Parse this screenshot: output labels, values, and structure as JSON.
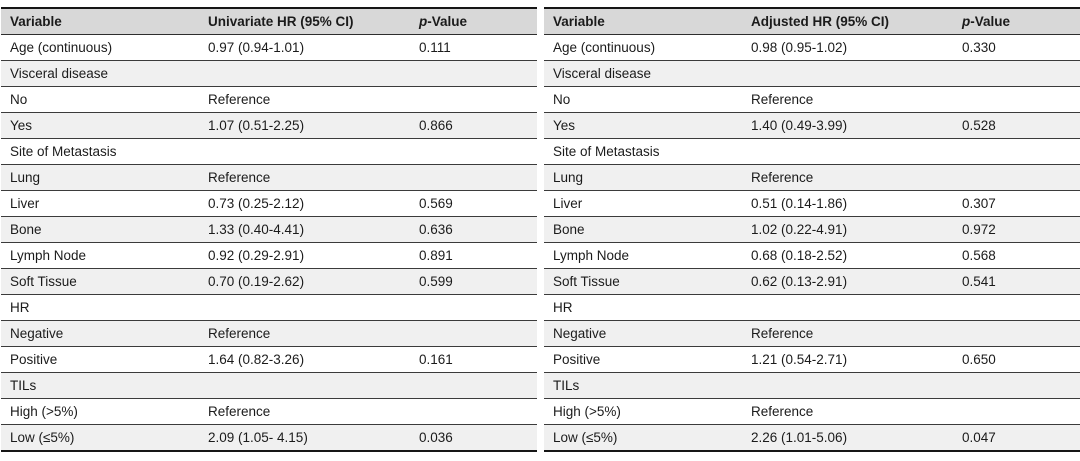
{
  "colors": {
    "header_bg": "#d8d8d8",
    "stripe_bg": "#f0f0f0",
    "row_bg": "#ffffff",
    "rule": "#3b3b3b",
    "heavy_rule": "#161616",
    "text": "#1b1b1b"
  },
  "tables": [
    {
      "id": "univariate",
      "headers": {
        "variable": "Variable",
        "hr": "Univariate HR (95% CI)",
        "p_italic": "p",
        "p_rest": "-Value"
      },
      "rows": [
        {
          "variable": "Age (continuous)",
          "hr": "0.97 (0.94-1.01)",
          "p": "0.111",
          "category": false
        },
        {
          "variable": "Visceral disease",
          "hr": "",
          "p": "",
          "category": true
        },
        {
          "variable": "No",
          "hr": "Reference",
          "p": "",
          "category": false
        },
        {
          "variable": "Yes",
          "hr": "1.07 (0.51-2.25)",
          "p": "0.866",
          "category": false
        },
        {
          "variable": "Site of Metastasis",
          "hr": "",
          "p": "",
          "category": true
        },
        {
          "variable": "Lung",
          "hr": "Reference",
          "p": "",
          "category": false
        },
        {
          "variable": "Liver",
          "hr": "0.73 (0.25-2.12)",
          "p": "0.569",
          "category": false
        },
        {
          "variable": "Bone",
          "hr": "1.33 (0.40-4.41)",
          "p": "0.636",
          "category": false
        },
        {
          "variable": "Lymph Node",
          "hr": "0.92 (0.29-2.91)",
          "p": "0.891",
          "category": false
        },
        {
          "variable": "Soft Tissue",
          "hr": "0.70 (0.19-2.62)",
          "p": "0.599",
          "category": false
        },
        {
          "variable": "HR",
          "hr": "",
          "p": "",
          "category": true
        },
        {
          "variable": "Negative",
          "hr": "Reference",
          "p": "",
          "category": false
        },
        {
          "variable": "Positive",
          "hr": "1.64 (0.82-3.26)",
          "p": "0.161",
          "category": false
        },
        {
          "variable": "TILs",
          "hr": "",
          "p": "",
          "category": true
        },
        {
          "variable": "High (>5%)",
          "hr": "Reference",
          "p": "",
          "category": false
        },
        {
          "variable": "Low (≤5%)",
          "hr": "2.09 (1.05- 4.15)",
          "p": "0.036",
          "category": false
        }
      ]
    },
    {
      "id": "adjusted",
      "headers": {
        "variable": "Variable",
        "hr": "Adjusted HR (95% CI)",
        "p_italic": "p",
        "p_rest": "-Value"
      },
      "rows": [
        {
          "variable": "Age (continuous)",
          "hr": "0.98 (0.95-1.02)",
          "p": "0.330",
          "category": false
        },
        {
          "variable": "Visceral disease",
          "hr": "",
          "p": "",
          "category": true
        },
        {
          "variable": "No",
          "hr": "Reference",
          "p": "",
          "category": false
        },
        {
          "variable": "Yes",
          "hr": "1.40 (0.49-3.99)",
          "p": "0.528",
          "category": false
        },
        {
          "variable": "Site of Metastasis",
          "hr": "",
          "p": "",
          "category": true
        },
        {
          "variable": "Lung",
          "hr": "Reference",
          "p": "",
          "category": false
        },
        {
          "variable": "Liver",
          "hr": "0.51 (0.14-1.86)",
          "p": "0.307",
          "category": false
        },
        {
          "variable": "Bone",
          "hr": "1.02 (0.22-4.91)",
          "p": "0.972",
          "category": false
        },
        {
          "variable": "Lymph Node",
          "hr": "0.68 (0.18-2.52)",
          "p": "0.568",
          "category": false
        },
        {
          "variable": "Soft Tissue",
          "hr": "0.62 (0.13-2.91)",
          "p": "0.541",
          "category": false
        },
        {
          "variable": "HR",
          "hr": "",
          "p": "",
          "category": true
        },
        {
          "variable": "Negative",
          "hr": "Reference",
          "p": "",
          "category": false
        },
        {
          "variable": "Positive",
          "hr": "1.21 (0.54-2.71)",
          "p": "0.650",
          "category": false
        },
        {
          "variable": "TILs",
          "hr": "",
          "p": "",
          "category": true
        },
        {
          "variable": "High (>5%)",
          "hr": "Reference",
          "p": "",
          "category": false
        },
        {
          "variable": "Low (≤5%)",
          "hr": "2.26 (1.01-5.06)",
          "p": "0.047",
          "category": false
        }
      ]
    }
  ]
}
